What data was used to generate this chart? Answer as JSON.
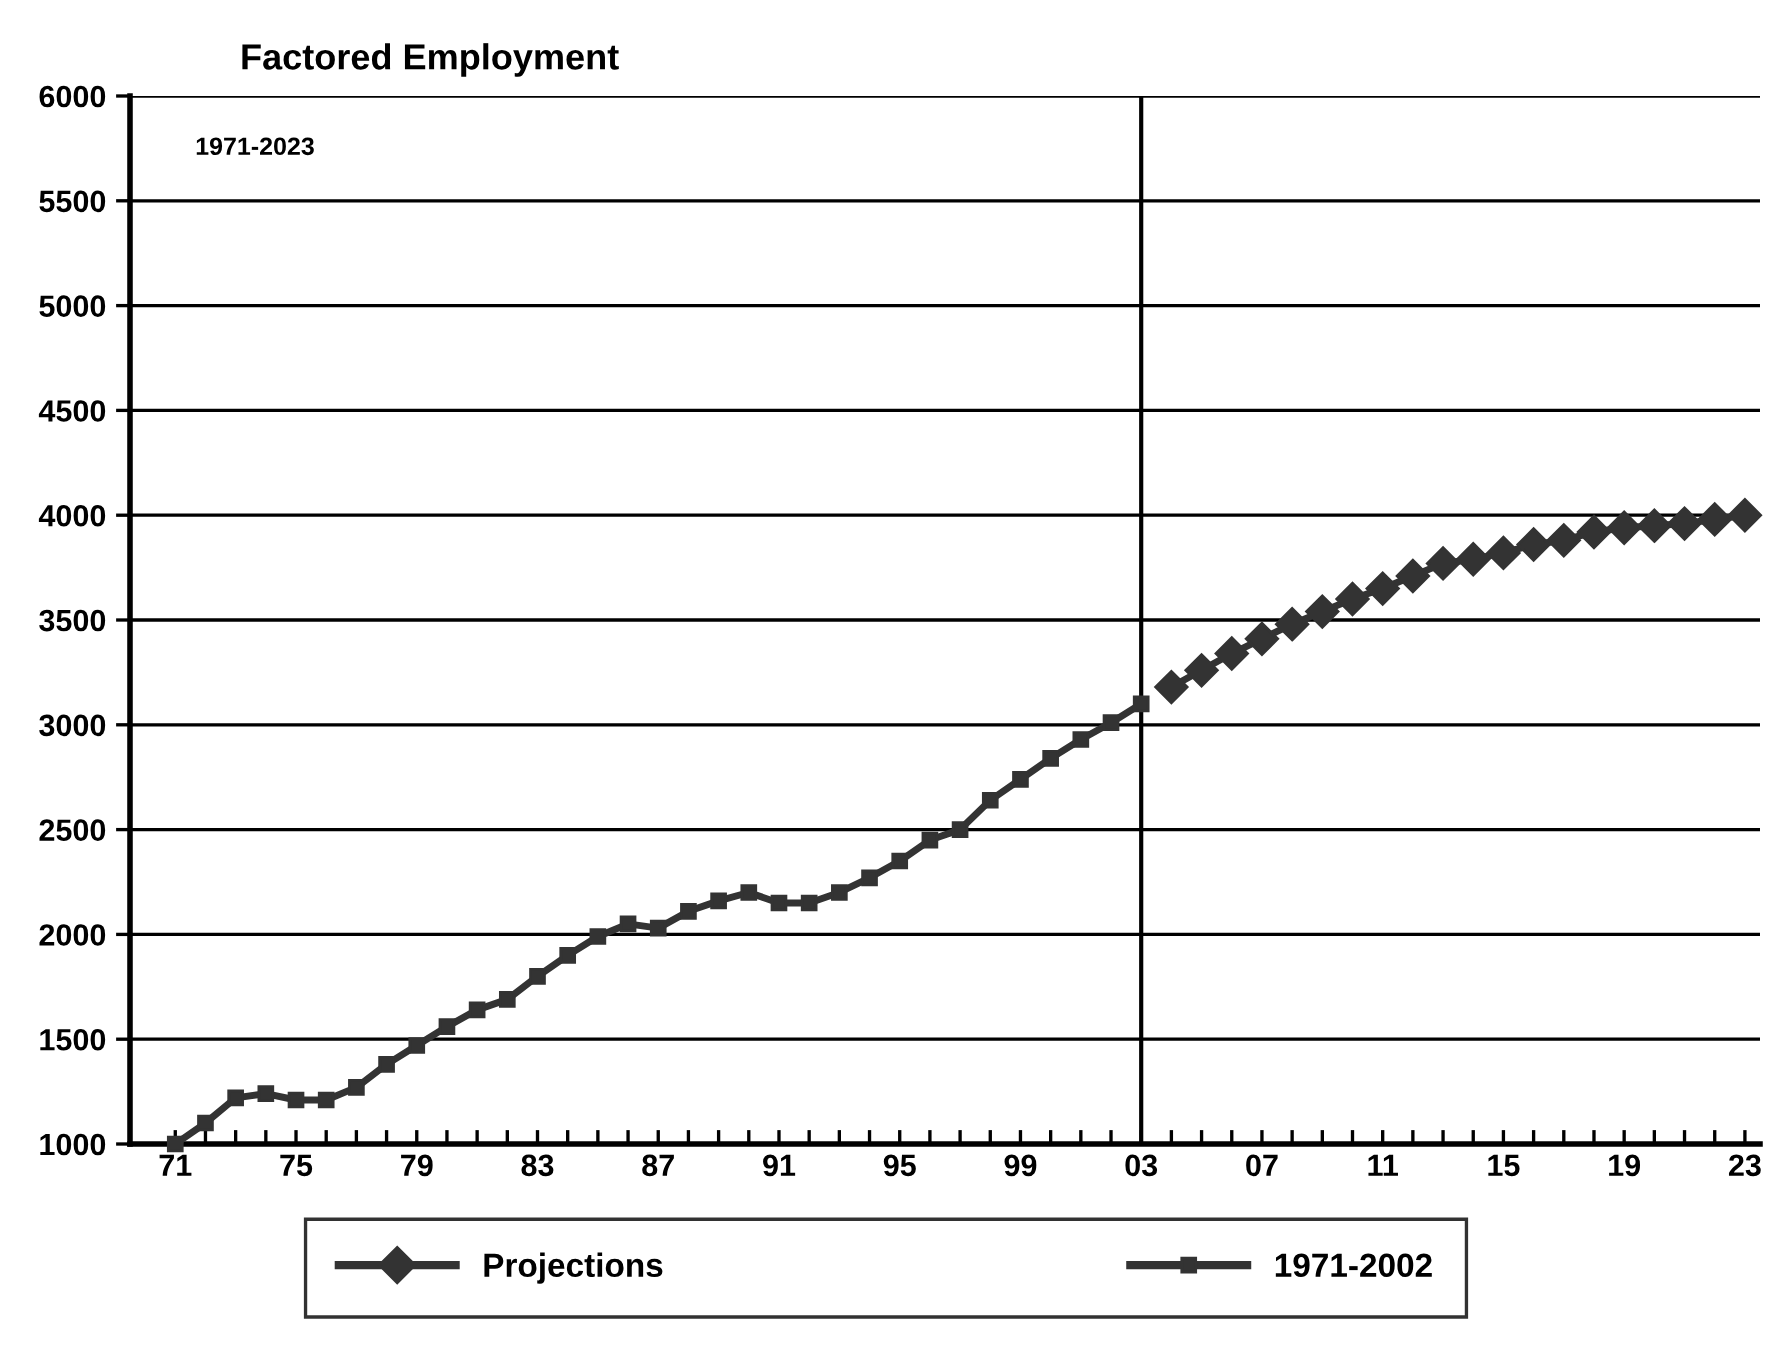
{
  "chart_data": {
    "type": "line",
    "title": "Factored Employment",
    "annotations": [
      "1971-2023"
    ],
    "xlim": [
      1969.5,
      2023.5
    ],
    "xticks": [
      {
        "value": 1971,
        "label": "71"
      },
      {
        "value": 1972,
        "label": null
      },
      {
        "value": 1973,
        "label": null
      },
      {
        "value": 1974,
        "label": null
      },
      {
        "value": 1975,
        "label": "75"
      },
      {
        "value": 1976,
        "label": null
      },
      {
        "value": 1977,
        "label": null
      },
      {
        "value": 1978,
        "label": null
      },
      {
        "value": 1979,
        "label": "79"
      },
      {
        "value": 1980,
        "label": null
      },
      {
        "value": 1981,
        "label": null
      },
      {
        "value": 1982,
        "label": null
      },
      {
        "value": 1983,
        "label": "83"
      },
      {
        "value": 1984,
        "label": null
      },
      {
        "value": 1985,
        "label": null
      },
      {
        "value": 1986,
        "label": null
      },
      {
        "value": 1987,
        "label": "87"
      },
      {
        "value": 1988,
        "label": null
      },
      {
        "value": 1989,
        "label": null
      },
      {
        "value": 1990,
        "label": null
      },
      {
        "value": 1991,
        "label": "91"
      },
      {
        "value": 1992,
        "label": null
      },
      {
        "value": 1993,
        "label": null
      },
      {
        "value": 1994,
        "label": null
      },
      {
        "value": 1995,
        "label": "95"
      },
      {
        "value": 1996,
        "label": null
      },
      {
        "value": 1997,
        "label": null
      },
      {
        "value": 1998,
        "label": null
      },
      {
        "value": 1999,
        "label": "99"
      },
      {
        "value": 2000,
        "label": null
      },
      {
        "value": 2001,
        "label": null
      },
      {
        "value": 2002,
        "label": null
      },
      {
        "value": 2003,
        "label": "03"
      },
      {
        "value": 2004,
        "label": null
      },
      {
        "value": 2005,
        "label": null
      },
      {
        "value": 2006,
        "label": null
      },
      {
        "value": 2007,
        "label": "07"
      },
      {
        "value": 2008,
        "label": null
      },
      {
        "value": 2009,
        "label": null
      },
      {
        "value": 2010,
        "label": null
      },
      {
        "value": 2011,
        "label": "11"
      },
      {
        "value": 2012,
        "label": null
      },
      {
        "value": 2013,
        "label": null
      },
      {
        "value": 2014,
        "label": null
      },
      {
        "value": 2015,
        "label": "15"
      },
      {
        "value": 2016,
        "label": null
      },
      {
        "value": 2017,
        "label": null
      },
      {
        "value": 2018,
        "label": null
      },
      {
        "value": 2019,
        "label": "19"
      },
      {
        "value": 2020,
        "label": null
      },
      {
        "value": 2021,
        "label": null
      },
      {
        "value": 2022,
        "label": null
      },
      {
        "value": 2023,
        "label": "23"
      }
    ],
    "ylim": [
      1000,
      6000
    ],
    "yticks": [
      1000,
      1500,
      2000,
      2500,
      3000,
      3500,
      4000,
      4500,
      5000,
      5500,
      6000
    ],
    "grid": "y",
    "legend": "bottom",
    "ref_lines": [
      {
        "axis": "x",
        "value": 2003,
        "color": "#000000"
      }
    ],
    "series": [
      {
        "name": "Projections",
        "color": "#333333",
        "marker": "diamond",
        "x": [
          2004,
          2005,
          2006,
          2007,
          2008,
          2009,
          2010,
          2011,
          2012,
          2013,
          2014,
          2015,
          2016,
          2017,
          2018,
          2019,
          2020,
          2021,
          2022,
          2023
        ],
        "values": [
          3180,
          3260,
          3340,
          3410,
          3480,
          3540,
          3600,
          3650,
          3710,
          3770,
          3790,
          3820,
          3860,
          3880,
          3920,
          3940,
          3950,
          3960,
          3980,
          4000
        ]
      },
      {
        "name": "1971-2002",
        "color": "#333333",
        "marker": "square",
        "x": [
          1971,
          1972,
          1973,
          1974,
          1975,
          1976,
          1977,
          1978,
          1979,
          1980,
          1981,
          1982,
          1983,
          1984,
          1985,
          1986,
          1987,
          1988,
          1989,
          1990,
          1991,
          1992,
          1993,
          1994,
          1995,
          1996,
          1997,
          1998,
          1999,
          2000,
          2001,
          2002,
          2003
        ],
        "values": [
          1000,
          1100,
          1220,
          1240,
          1210,
          1210,
          1270,
          1380,
          1470,
          1560,
          1640,
          1690,
          1800,
          1900,
          1990,
          2050,
          2030,
          2110,
          2160,
          2200,
          2150,
          2150,
          2200,
          2270,
          2350,
          2450,
          2500,
          2640,
          2740,
          2840,
          2930,
          3010,
          3100
        ]
      }
    ]
  }
}
